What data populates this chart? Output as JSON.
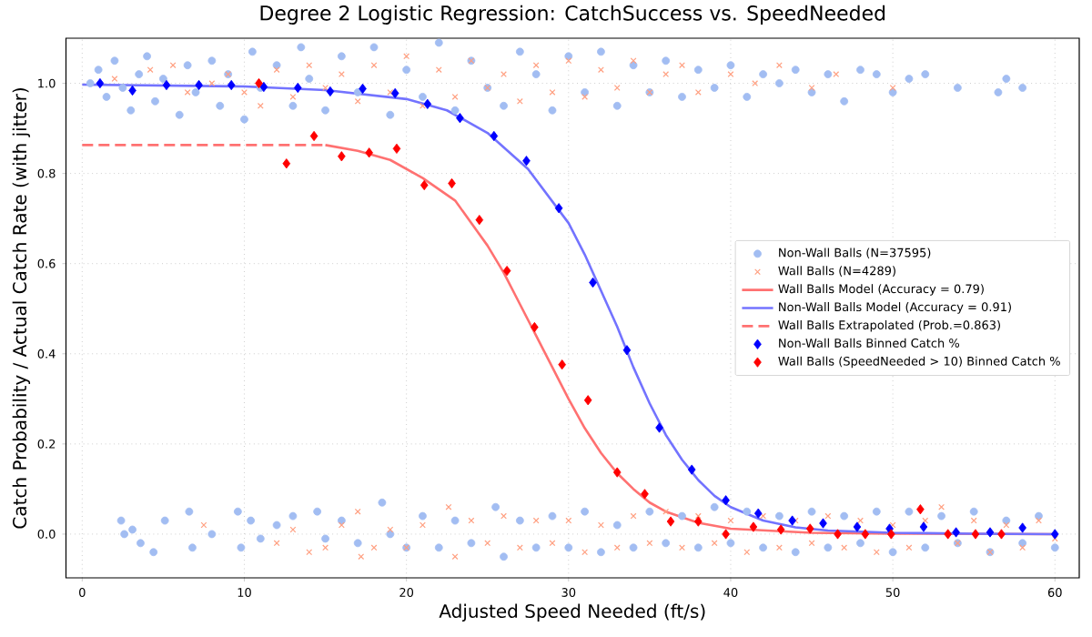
{
  "chart_data": {
    "type": "scatter",
    "title": "Degree 2 Logistic Regression: CatchSuccess vs. SpeedNeeded",
    "xlabel": "Adjusted Speed Needed (ft/s)",
    "ylabel": "Catch Probability / Actual Catch Rate (with jitter)",
    "xlim": [
      -1.0,
      61.5
    ],
    "ylim": [
      -0.097,
      1.1
    ],
    "xticks": [
      0,
      10,
      20,
      30,
      40,
      50,
      60
    ],
    "yticks": [
      {
        "value": 0,
        "label": "0.0"
      },
      {
        "value": 0.2,
        "label": "0.2"
      },
      {
        "value": 0.4,
        "label": "0.4"
      },
      {
        "value": 0.6,
        "label": "0.6"
      },
      {
        "value": 0.8,
        "label": "0.8"
      },
      {
        "value": 1.0,
        "label": "1.0"
      }
    ],
    "grid": true,
    "legend": "right",
    "series": [
      {
        "name": "Non-Wall Balls (N=37595)",
        "marker": "circle",
        "color": "#a2bdf2",
        "x": [
          0.5,
          1,
          1.5,
          2,
          2.5,
          3,
          3.5,
          4,
          4.5,
          5,
          6,
          6.5,
          7,
          8,
          8.5,
          9,
          10,
          10.5,
          11,
          12,
          13,
          13.5,
          14,
          15,
          16,
          17,
          18,
          19,
          20,
          21,
          22,
          23,
          24,
          25,
          26,
          27,
          28,
          29,
          30,
          31,
          32,
          33,
          34,
          35,
          36,
          37,
          38,
          39,
          40,
          41,
          42,
          43,
          44,
          45,
          46,
          47,
          48,
          49,
          50,
          51,
          52,
          54,
          56.5,
          57,
          58,
          2.4,
          2.6,
          3.1,
          3.6,
          4.4,
          5.1,
          6.6,
          6.8,
          8,
          9.6,
          9.8,
          10.4,
          11,
          12,
          13,
          14.5,
          15,
          16,
          17,
          18.5,
          19,
          20,
          21,
          22,
          23,
          24,
          25.5,
          26,
          27,
          28,
          29,
          30,
          31,
          32,
          33,
          34,
          35,
          36,
          37,
          38,
          39,
          40,
          41,
          42,
          43,
          44,
          45,
          46,
          47,
          48,
          49,
          50,
          51,
          52,
          53,
          54,
          55,
          56,
          57,
          58,
          59,
          60
        ],
        "values": [
          1.0,
          1.03,
          0.97,
          1.05,
          0.99,
          0.94,
          1.02,
          1.06,
          0.96,
          1.01,
          0.93,
          1.04,
          0.98,
          1.05,
          0.95,
          1.02,
          0.92,
          1.07,
          0.99,
          1.04,
          0.95,
          1.08,
          1.01,
          0.94,
          1.06,
          0.98,
          1.08,
          0.93,
          1.03,
          0.97,
          1.09,
          0.94,
          1.05,
          0.99,
          0.95,
          1.07,
          1.02,
          0.94,
          1.06,
          0.98,
          1.07,
          0.95,
          1.04,
          0.98,
          1.05,
          0.97,
          1.03,
          0.99,
          1.04,
          0.97,
          1.02,
          1.0,
          1.03,
          0.98,
          1.02,
          0.96,
          1.03,
          1.02,
          0.98,
          1.01,
          1.02,
          0.99,
          0.98,
          1.01,
          0.99,
          0.03,
          0.0,
          0.01,
          -0.02,
          -0.04,
          0.03,
          0.05,
          -0.03,
          0.0,
          0.05,
          -0.03,
          0.03,
          -0.01,
          0.02,
          0.04,
          0.05,
          -0.01,
          0.03,
          -0.02,
          0.07,
          0.0,
          -0.03,
          0.04,
          -0.03,
          0.03,
          -0.02,
          0.06,
          -0.05,
          0.03,
          -0.03,
          0.04,
          -0.03,
          0.05,
          -0.04,
          0.02,
          -0.03,
          0.05,
          -0.02,
          0.04,
          -0.03,
          0.06,
          -0.02,
          0.05,
          -0.03,
          0.04,
          -0.04,
          0.05,
          -0.03,
          0.04,
          -0.02,
          0.05,
          -0.04,
          0.05,
          -0.03,
          0.04,
          -0.02,
          0.05,
          -0.04,
          0.03,
          -0.02,
          0.04,
          -0.03
        ]
      },
      {
        "name": "Wall Balls (N=4289)",
        "marker": "cross",
        "color": "#ff9f80",
        "x": [
          2,
          4.2,
          5.6,
          6.5,
          8,
          9,
          10,
          11,
          12,
          13,
          14,
          15,
          16,
          17,
          18,
          19,
          20,
          21,
          22,
          23,
          24,
          25,
          26,
          27,
          28,
          29,
          30,
          31,
          32,
          33,
          34,
          35,
          36,
          37,
          38,
          40,
          41.5,
          43,
          45,
          46.5,
          50,
          7.5,
          12,
          13,
          14,
          15,
          16,
          17,
          17.2,
          18,
          19,
          20,
          21,
          22.6,
          23,
          24,
          25,
          26,
          27,
          28,
          29,
          30,
          31,
          32,
          33,
          34,
          35,
          36,
          37,
          38,
          39,
          40,
          41,
          42,
          43,
          44,
          45,
          46,
          47,
          48,
          49,
          50,
          51,
          52,
          53,
          54,
          55,
          56,
          57,
          58,
          59,
          60
        ],
        "values": [
          1.01,
          1.03,
          1.04,
          0.98,
          1.0,
          1.02,
          0.98,
          0.95,
          1.03,
          0.97,
          1.04,
          0.99,
          1.02,
          0.96,
          1.04,
          0.98,
          1.06,
          0.95,
          1.03,
          0.97,
          1.05,
          0.99,
          1.02,
          0.96,
          1.04,
          0.98,
          1.05,
          0.97,
          1.03,
          0.99,
          1.05,
          0.98,
          1.02,
          1.04,
          0.98,
          1.02,
          1.0,
          1.04,
          0.99,
          1.02,
          0.99,
          0.02,
          -0.02,
          0.01,
          -0.04,
          -0.03,
          0.02,
          0.05,
          -0.05,
          -0.03,
          0.01,
          -0.03,
          0.02,
          0.06,
          -0.05,
          0.03,
          -0.02,
          0.04,
          -0.03,
          0.03,
          -0.02,
          0.03,
          -0.04,
          0.02,
          -0.03,
          0.04,
          -0.02,
          0.05,
          -0.03,
          0.04,
          -0.02,
          0.03,
          -0.04,
          0.04,
          -0.03,
          0.03,
          -0.02,
          0.04,
          -0.03,
          0.03,
          -0.04,
          0.02,
          -0.03,
          0.03,
          0.06,
          -0.02,
          0.03,
          -0.04,
          0.02,
          -0.03,
          0.03,
          -0.01
        ]
      },
      {
        "name": "Wall Balls Model (Accuracy = 0.79)",
        "type": "line",
        "line_style": "solid",
        "color": "#ff7171",
        "x": [
          15,
          17,
          19,
          21,
          23,
          25,
          26,
          27,
          28,
          29,
          30,
          31,
          32,
          33,
          34,
          35,
          36,
          38,
          40,
          45,
          50,
          60
        ],
        "values": [
          0.863,
          0.85,
          0.83,
          0.79,
          0.74,
          0.64,
          0.58,
          0.51,
          0.44,
          0.37,
          0.3,
          0.235,
          0.18,
          0.135,
          0.1,
          0.07,
          0.05,
          0.025,
          0.012,
          0.003,
          0.001,
          0.0
        ]
      },
      {
        "name": "Non-Wall Balls Model (Accuracy = 0.91)",
        "type": "line",
        "line_style": "solid",
        "color": "#7373ff",
        "x": [
          0,
          10,
          15,
          20,
          22.5,
          25,
          27.5,
          30,
          31,
          32,
          33,
          34,
          35,
          36,
          37,
          38,
          39,
          40,
          42,
          44,
          46,
          50,
          55,
          60
        ],
        "values": [
          0.997,
          0.993,
          0.985,
          0.965,
          0.94,
          0.89,
          0.81,
          0.69,
          0.62,
          0.54,
          0.46,
          0.37,
          0.29,
          0.22,
          0.165,
          0.12,
          0.085,
          0.06,
          0.03,
          0.015,
          0.008,
          0.003,
          0.001,
          0.0
        ]
      },
      {
        "name": "Wall Balls Extrapolated (Prob.=0.863)",
        "type": "line",
        "line_style": "dashed",
        "color": "#ff7171",
        "x": [
          0,
          15
        ],
        "values": [
          0.863,
          0.863
        ]
      },
      {
        "name": "Non-Wall Balls Binned Catch %",
        "marker": "diamond",
        "color": "#0000ff",
        "x": [
          1.1,
          3.1,
          5.2,
          7.2,
          9.2,
          11.2,
          13.3,
          15.3,
          17.3,
          19.3,
          21.3,
          23.3,
          25.4,
          27.4,
          29.4,
          31.5,
          33.6,
          35.6,
          37.6,
          39.7,
          41.7,
          43.8,
          45.7,
          47.8,
          49.8,
          51.9,
          53.9,
          56.0,
          58.0,
          60.0
        ],
        "values": [
          1.0,
          0.984,
          0.996,
          0.996,
          0.996,
          0.992,
          0.99,
          0.982,
          0.988,
          0.978,
          0.954,
          0.923,
          0.883,
          0.828,
          0.723,
          0.558,
          0.408,
          0.236,
          0.143,
          0.075,
          0.046,
          0.03,
          0.024,
          0.016,
          0.012,
          0.016,
          0.004,
          0.004,
          0.014,
          0.0
        ]
      },
      {
        "name": "Wall Balls (SpeedNeeded > 10) Binned Catch %",
        "marker": "diamond",
        "color": "#ff0000",
        "x": [
          10.9,
          12.6,
          14.3,
          16.0,
          17.7,
          19.4,
          21.1,
          22.8,
          24.5,
          26.2,
          27.9,
          29.6,
          31.2,
          33.0,
          34.7,
          36.3,
          38.0,
          39.7,
          41.4,
          43.1,
          44.9,
          46.6,
          48.3,
          49.9,
          51.7,
          53.4,
          55.1,
          56.7
        ],
        "values": [
          1.0,
          0.822,
          0.883,
          0.838,
          0.846,
          0.855,
          0.774,
          0.778,
          0.697,
          0.584,
          0.459,
          0.376,
          0.297,
          0.137,
          0.089,
          0.028,
          0.028,
          0.0,
          0.016,
          0.01,
          0.012,
          0.0,
          0.0,
          0.0,
          0.055,
          0.0,
          0.0,
          0.0
        ]
      }
    ]
  }
}
